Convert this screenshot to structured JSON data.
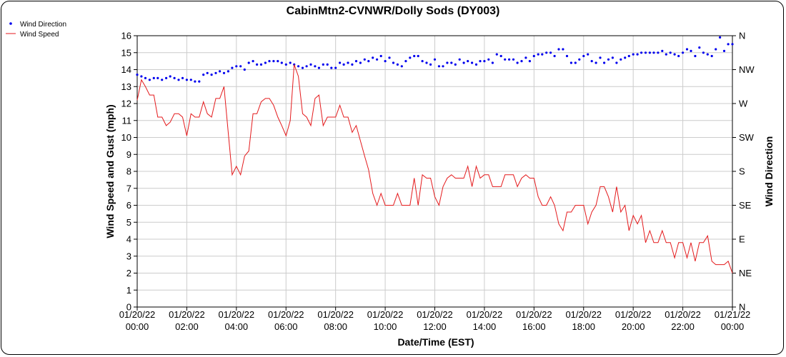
{
  "chart_data": {
    "type": "line",
    "title": "CabinMtn2-CVNWR/Dolly Sods (DY003)",
    "xlabel": "Date/Time (EST)",
    "ylabel": "Wind Speed and Gust (mph)",
    "y2label": "Wind Direction",
    "ylim": [
      0,
      16
    ],
    "yticks": [
      "0",
      "1",
      "2",
      "3",
      "4",
      "5",
      "6",
      "7",
      "8",
      "9",
      "10",
      "11",
      "12",
      "13",
      "14",
      "15",
      "16"
    ],
    "y2ticks": [
      "N",
      "NE",
      "E",
      "SE",
      "S",
      "SW",
      "W",
      "NW",
      "N"
    ],
    "x_range_hours": [
      0,
      24
    ],
    "xticks": [
      {
        "date": "01/20/22",
        "time": "00:00"
      },
      {
        "date": "01/20/22",
        "time": "02:00"
      },
      {
        "date": "01/20/22",
        "time": "04:00"
      },
      {
        "date": "01/20/22",
        "time": "06:00"
      },
      {
        "date": "01/20/22",
        "time": "08:00"
      },
      {
        "date": "01/20/22",
        "time": "10:00"
      },
      {
        "date": "01/20/22",
        "time": "12:00"
      },
      {
        "date": "01/20/22",
        "time": "14:00"
      },
      {
        "date": "01/20/22",
        "time": "16:00"
      },
      {
        "date": "01/20/22",
        "time": "18:00"
      },
      {
        "date": "01/20/22",
        "time": "20:00"
      },
      {
        "date": "01/20/22",
        "time": "22:00"
      },
      {
        "date": "01/21/22",
        "time": "00:00"
      }
    ],
    "grid": true,
    "legend_position": "top-left",
    "series": [
      {
        "name": "Wind Direction",
        "kind": "scatter",
        "axis": "right",
        "color": "#0000ee",
        "points": [
          [
            0.0,
            13.7
          ],
          [
            0.17,
            13.6
          ],
          [
            0.33,
            13.5
          ],
          [
            0.5,
            13.4
          ],
          [
            0.67,
            13.5
          ],
          [
            0.83,
            13.5
          ],
          [
            1.0,
            13.4
          ],
          [
            1.17,
            13.5
          ],
          [
            1.33,
            13.6
          ],
          [
            1.5,
            13.5
          ],
          [
            1.67,
            13.4
          ],
          [
            1.83,
            13.5
          ],
          [
            2.0,
            13.4
          ],
          [
            2.17,
            13.4
          ],
          [
            2.33,
            13.3
          ],
          [
            2.5,
            13.3
          ],
          [
            2.67,
            13.7
          ],
          [
            2.83,
            13.8
          ],
          [
            3.0,
            13.7
          ],
          [
            3.17,
            13.8
          ],
          [
            3.33,
            13.9
          ],
          [
            3.5,
            13.8
          ],
          [
            3.67,
            13.9
          ],
          [
            3.83,
            14.1
          ],
          [
            4.0,
            14.2
          ],
          [
            4.17,
            14.2
          ],
          [
            4.33,
            14.0
          ],
          [
            4.5,
            14.4
          ],
          [
            4.67,
            14.5
          ],
          [
            4.83,
            14.3
          ],
          [
            5.0,
            14.3
          ],
          [
            5.17,
            14.4
          ],
          [
            5.33,
            14.5
          ],
          [
            5.5,
            14.5
          ],
          [
            5.67,
            14.5
          ],
          [
            5.83,
            14.4
          ],
          [
            6.0,
            14.3
          ],
          [
            6.17,
            14.4
          ],
          [
            6.33,
            14.3
          ],
          [
            6.5,
            14.2
          ],
          [
            6.67,
            14.1
          ],
          [
            6.83,
            14.2
          ],
          [
            7.0,
            14.3
          ],
          [
            7.17,
            14.2
          ],
          [
            7.33,
            14.1
          ],
          [
            7.5,
            14.3
          ],
          [
            7.67,
            14.3
          ],
          [
            7.83,
            14.1
          ],
          [
            8.0,
            14.1
          ],
          [
            8.17,
            14.4
          ],
          [
            8.33,
            14.3
          ],
          [
            8.5,
            14.4
          ],
          [
            8.67,
            14.3
          ],
          [
            8.83,
            14.5
          ],
          [
            9.0,
            14.4
          ],
          [
            9.17,
            14.6
          ],
          [
            9.33,
            14.5
          ],
          [
            9.5,
            14.7
          ],
          [
            9.67,
            14.6
          ],
          [
            9.83,
            14.8
          ],
          [
            10.0,
            14.5
          ],
          [
            10.17,
            14.7
          ],
          [
            10.33,
            14.4
          ],
          [
            10.5,
            14.3
          ],
          [
            10.67,
            14.2
          ],
          [
            10.83,
            14.5
          ],
          [
            11.0,
            14.7
          ],
          [
            11.17,
            14.8
          ],
          [
            11.33,
            14.8
          ],
          [
            11.5,
            14.5
          ],
          [
            11.67,
            14.4
          ],
          [
            11.83,
            14.3
          ],
          [
            12.0,
            14.6
          ],
          [
            12.17,
            14.2
          ],
          [
            12.33,
            14.2
          ],
          [
            12.5,
            14.4
          ],
          [
            12.67,
            14.4
          ],
          [
            12.83,
            14.3
          ],
          [
            13.0,
            14.6
          ],
          [
            13.17,
            14.4
          ],
          [
            13.33,
            14.5
          ],
          [
            13.5,
            14.4
          ],
          [
            13.67,
            14.3
          ],
          [
            13.83,
            14.5
          ],
          [
            14.0,
            14.5
          ],
          [
            14.17,
            14.6
          ],
          [
            14.33,
            14.4
          ],
          [
            14.5,
            14.9
          ],
          [
            14.67,
            14.8
          ],
          [
            14.83,
            14.6
          ],
          [
            15.0,
            14.6
          ],
          [
            15.17,
            14.6
          ],
          [
            15.33,
            14.4
          ],
          [
            15.5,
            14.5
          ],
          [
            15.67,
            14.7
          ],
          [
            15.83,
            14.5
          ],
          [
            16.0,
            14.8
          ],
          [
            16.17,
            14.9
          ],
          [
            16.33,
            14.9
          ],
          [
            16.5,
            15.0
          ],
          [
            16.67,
            15.0
          ],
          [
            16.83,
            14.8
          ],
          [
            17.0,
            15.2
          ],
          [
            17.17,
            15.2
          ],
          [
            17.33,
            14.8
          ],
          [
            17.5,
            14.4
          ],
          [
            17.67,
            14.4
          ],
          [
            17.83,
            14.6
          ],
          [
            18.0,
            14.8
          ],
          [
            18.17,
            14.9
          ],
          [
            18.33,
            14.5
          ],
          [
            18.5,
            14.4
          ],
          [
            18.67,
            14.7
          ],
          [
            18.83,
            14.4
          ],
          [
            19.0,
            14.6
          ],
          [
            19.17,
            14.7
          ],
          [
            19.33,
            14.4
          ],
          [
            19.5,
            14.6
          ],
          [
            19.67,
            14.7
          ],
          [
            19.83,
            14.8
          ],
          [
            20.0,
            14.9
          ],
          [
            20.17,
            14.9
          ],
          [
            20.33,
            15.0
          ],
          [
            20.5,
            15.0
          ],
          [
            20.67,
            15.0
          ],
          [
            20.83,
            15.0
          ],
          [
            21.0,
            15.0
          ],
          [
            21.17,
            15.1
          ],
          [
            21.33,
            14.9
          ],
          [
            21.5,
            15.0
          ],
          [
            21.67,
            14.9
          ],
          [
            21.83,
            14.8
          ],
          [
            22.0,
            15.0
          ],
          [
            22.17,
            15.2
          ],
          [
            22.33,
            15.1
          ],
          [
            22.5,
            14.8
          ],
          [
            22.67,
            15.3
          ],
          [
            22.83,
            15.0
          ],
          [
            23.0,
            14.9
          ],
          [
            23.17,
            14.8
          ],
          [
            23.33,
            15.2
          ],
          [
            23.5,
            15.9
          ],
          [
            23.67,
            15.1
          ],
          [
            23.83,
            15.5
          ],
          [
            24.0,
            15.5
          ]
        ]
      },
      {
        "name": "Wind Speed",
        "kind": "line",
        "axis": "left",
        "color": "#e41a1c",
        "points": [
          [
            0.0,
            12.2
          ],
          [
            0.17,
            13.4
          ],
          [
            0.33,
            13.0
          ],
          [
            0.5,
            12.5
          ],
          [
            0.67,
            12.5
          ],
          [
            0.83,
            11.2
          ],
          [
            1.0,
            11.2
          ],
          [
            1.17,
            10.7
          ],
          [
            1.33,
            10.9
          ],
          [
            1.5,
            11.4
          ],
          [
            1.67,
            11.4
          ],
          [
            1.83,
            11.2
          ],
          [
            2.0,
            10.1
          ],
          [
            2.17,
            11.4
          ],
          [
            2.33,
            11.2
          ],
          [
            2.5,
            11.2
          ],
          [
            2.67,
            12.1
          ],
          [
            2.83,
            11.4
          ],
          [
            3.0,
            11.2
          ],
          [
            3.17,
            12.3
          ],
          [
            3.33,
            12.3
          ],
          [
            3.5,
            13.0
          ],
          [
            3.67,
            10.3
          ],
          [
            3.83,
            7.8
          ],
          [
            4.0,
            8.3
          ],
          [
            4.17,
            7.8
          ],
          [
            4.33,
            8.9
          ],
          [
            4.5,
            9.2
          ],
          [
            4.67,
            11.4
          ],
          [
            4.83,
            11.4
          ],
          [
            5.0,
            12.1
          ],
          [
            5.17,
            12.3
          ],
          [
            5.33,
            12.3
          ],
          [
            5.5,
            11.9
          ],
          [
            5.67,
            11.2
          ],
          [
            5.83,
            10.7
          ],
          [
            6.0,
            10.1
          ],
          [
            6.17,
            11.0
          ],
          [
            6.33,
            14.3
          ],
          [
            6.5,
            13.6
          ],
          [
            6.67,
            11.4
          ],
          [
            6.83,
            11.2
          ],
          [
            7.0,
            10.7
          ],
          [
            7.17,
            12.3
          ],
          [
            7.33,
            12.5
          ],
          [
            7.5,
            10.7
          ],
          [
            7.67,
            11.2
          ],
          [
            7.83,
            11.2
          ],
          [
            8.0,
            11.2
          ],
          [
            8.17,
            11.9
          ],
          [
            8.33,
            11.2
          ],
          [
            8.5,
            11.2
          ],
          [
            8.67,
            10.3
          ],
          [
            8.83,
            10.7
          ],
          [
            9.0,
            9.8
          ],
          [
            9.17,
            8.9
          ],
          [
            9.33,
            8.1
          ],
          [
            9.5,
            6.7
          ],
          [
            9.67,
            6.0
          ],
          [
            9.83,
            6.7
          ],
          [
            10.0,
            6.0
          ],
          [
            10.17,
            6.0
          ],
          [
            10.33,
            6.0
          ],
          [
            10.5,
            6.7
          ],
          [
            10.67,
            6.0
          ],
          [
            10.83,
            6.0
          ],
          [
            11.0,
            6.0
          ],
          [
            11.17,
            7.6
          ],
          [
            11.33,
            6.0
          ],
          [
            11.5,
            7.8
          ],
          [
            11.67,
            7.6
          ],
          [
            11.83,
            7.6
          ],
          [
            12.0,
            6.5
          ],
          [
            12.17,
            6.0
          ],
          [
            12.33,
            7.1
          ],
          [
            12.5,
            7.6
          ],
          [
            12.67,
            7.8
          ],
          [
            12.83,
            7.6
          ],
          [
            13.0,
            7.6
          ],
          [
            13.17,
            7.6
          ],
          [
            13.33,
            8.3
          ],
          [
            13.5,
            7.1
          ],
          [
            13.67,
            8.3
          ],
          [
            13.83,
            7.6
          ],
          [
            14.0,
            7.8
          ],
          [
            14.17,
            7.8
          ],
          [
            14.33,
            7.1
          ],
          [
            14.5,
            7.1
          ],
          [
            14.67,
            7.1
          ],
          [
            14.83,
            7.8
          ],
          [
            15.0,
            7.8
          ],
          [
            15.17,
            7.8
          ],
          [
            15.33,
            7.1
          ],
          [
            15.5,
            7.6
          ],
          [
            15.67,
            7.8
          ],
          [
            15.83,
            7.6
          ],
          [
            16.0,
            7.6
          ],
          [
            16.17,
            6.5
          ],
          [
            16.33,
            6.0
          ],
          [
            16.5,
            6.0
          ],
          [
            16.67,
            6.5
          ],
          [
            16.83,
            6.0
          ],
          [
            17.0,
            4.9
          ],
          [
            17.17,
            4.5
          ],
          [
            17.33,
            5.6
          ],
          [
            17.5,
            5.6
          ],
          [
            17.67,
            6.0
          ],
          [
            17.83,
            6.0
          ],
          [
            18.0,
            6.0
          ],
          [
            18.17,
            4.9
          ],
          [
            18.33,
            5.6
          ],
          [
            18.5,
            6.0
          ],
          [
            18.67,
            7.1
          ],
          [
            18.83,
            7.1
          ],
          [
            19.0,
            6.5
          ],
          [
            19.17,
            5.6
          ],
          [
            19.33,
            7.1
          ],
          [
            19.5,
            5.6
          ],
          [
            19.67,
            6.0
          ],
          [
            19.83,
            4.5
          ],
          [
            20.0,
            5.4
          ],
          [
            20.17,
            4.9
          ],
          [
            20.33,
            5.4
          ],
          [
            20.5,
            3.8
          ],
          [
            20.67,
            4.5
          ],
          [
            20.83,
            3.8
          ],
          [
            21.0,
            3.8
          ],
          [
            21.17,
            4.5
          ],
          [
            21.33,
            3.8
          ],
          [
            21.5,
            3.8
          ],
          [
            21.67,
            2.9
          ],
          [
            21.83,
            3.8
          ],
          [
            22.0,
            3.8
          ],
          [
            22.17,
            2.9
          ],
          [
            22.33,
            3.8
          ],
          [
            22.5,
            2.7
          ],
          [
            22.67,
            3.8
          ],
          [
            22.83,
            3.8
          ],
          [
            23.0,
            4.2
          ],
          [
            23.17,
            2.7
          ],
          [
            23.33,
            2.5
          ],
          [
            23.5,
            2.5
          ],
          [
            23.67,
            2.5
          ],
          [
            23.83,
            2.7
          ],
          [
            24.0,
            2.0
          ]
        ]
      }
    ]
  }
}
